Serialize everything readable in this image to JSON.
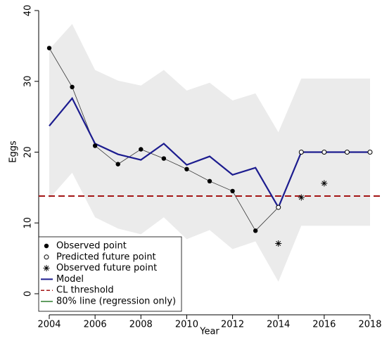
{
  "chart_data": {
    "type": "line",
    "x_label": "Year",
    "y_label": "Eggs",
    "x": [
      2004,
      2005,
      2006,
      2007,
      2008,
      2009,
      2010,
      2011,
      2012,
      2013,
      2014,
      2015,
      2016,
      2017,
      2018
    ],
    "xlim": [
      2004,
      2018
    ],
    "xticks": [
      2004,
      2006,
      2008,
      2010,
      2012,
      2014,
      2016,
      2018
    ],
    "ylim": [
      0,
      40
    ],
    "yticks": [
      0,
      10,
      20,
      30,
      40
    ],
    "band": {
      "color": "#ebebeb",
      "upper": [
        34.5,
        38.1,
        31.6,
        30.1,
        29.4,
        31.6,
        28.7,
        29.8,
        27.3,
        28.3,
        22.8,
        30.4,
        30.4,
        30.4,
        30.4
      ],
      "lower": [
        13.4,
        17.1,
        10.8,
        9.2,
        8.4,
        10.8,
        7.7,
        9.0,
        6.3,
        7.4,
        1.7,
        9.6,
        9.6,
        9.6,
        9.6
      ]
    },
    "series": [
      {
        "name": "Observed point",
        "color": "#000000",
        "marker": "filled",
        "line": true,
        "values": [
          34.7,
          29.2,
          20.9,
          18.3,
          20.4,
          19.1,
          17.6,
          15.9,
          14.5,
          8.9,
          null,
          null,
          null,
          null,
          null
        ]
      },
      {
        "name": "Predicted future point",
        "color": "#000000",
        "marker": "open",
        "line": false,
        "values": [
          null,
          null,
          null,
          null,
          null,
          null,
          null,
          null,
          null,
          null,
          12.2,
          20,
          20,
          20,
          20
        ]
      },
      {
        "name": "Observed future point",
        "color": "#000000",
        "marker": "asterisk",
        "line": false,
        "values": [
          null,
          null,
          null,
          null,
          null,
          null,
          null,
          null,
          null,
          null,
          7.1,
          13.6,
          15.6,
          null,
          null
        ]
      },
      {
        "name": "Model",
        "color": "#1c1c8f",
        "marker": "none",
        "line": true,
        "values": [
          23.7,
          27.6,
          21.2,
          19.7,
          18.9,
          21.2,
          18.2,
          19.4,
          16.8,
          17.8,
          12.2,
          20,
          20,
          20,
          20
        ]
      }
    ],
    "threshold": {
      "name": "CL threshold",
      "value": 13.8,
      "color": "#a31515"
    },
    "extra_legend": [
      {
        "name": "80% line (regression only)",
        "color": "#2e7d2e"
      }
    ]
  }
}
